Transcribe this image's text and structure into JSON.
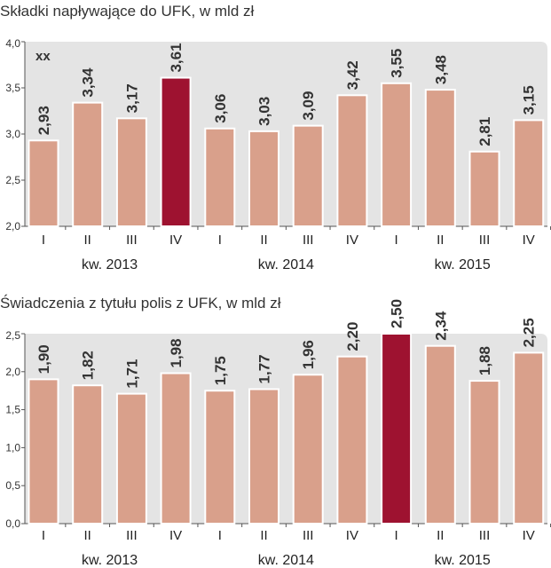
{
  "colors": {
    "bar": "#d9a08b",
    "bar_highlight": "#9e1230",
    "panel_bg": "#e4e4e4",
    "axis": "#555555"
  },
  "chart_data": [
    {
      "type": "bar",
      "title": "Składki napływające do UFK, w mld zł",
      "badge": "xx",
      "categories": [
        "I",
        "II",
        "III",
        "IV",
        "I",
        "II",
        "III",
        "IV",
        "I",
        "II",
        "III",
        "IV"
      ],
      "years": [
        "kw. 2013",
        "kw. 2014",
        "kw. 2015"
      ],
      "values": [
        2.93,
        3.34,
        3.17,
        3.61,
        3.06,
        3.03,
        3.09,
        3.42,
        3.55,
        3.48,
        2.81,
        3.15
      ],
      "value_labels": [
        "2,93",
        "3,34",
        "3,17",
        "3,61",
        "3,06",
        "3,03",
        "3,09",
        "3,42",
        "3,55",
        "3,48",
        "2,81",
        "3,15"
      ],
      "highlight_index": 3,
      "ylim": [
        2.0,
        4.0
      ],
      "yticks": [
        2.0,
        2.5,
        3.0,
        3.5,
        4.0
      ],
      "ytick_labels": [
        "2,0",
        "2,5",
        "3,0",
        "3,5",
        "4,0"
      ]
    },
    {
      "type": "bar",
      "title": "Świadczenia z tytułu polis z UFK, w mld zł",
      "categories": [
        "I",
        "II",
        "III",
        "IV",
        "I",
        "II",
        "III",
        "IV",
        "I",
        "II",
        "III",
        "IV"
      ],
      "years": [
        "kw. 2013",
        "kw. 2014",
        "kw. 2015"
      ],
      "values": [
        1.9,
        1.82,
        1.71,
        1.98,
        1.75,
        1.77,
        1.96,
        2.2,
        2.5,
        2.34,
        1.88,
        2.25
      ],
      "value_labels": [
        "1,90",
        "1,82",
        "1,71",
        "1,98",
        "1,75",
        "1,77",
        "1,96",
        "2,20",
        "2,50",
        "2,34",
        "1,88",
        "2,25"
      ],
      "highlight_index": 8,
      "ylim": [
        0.0,
        2.5
      ],
      "yticks": [
        0.0,
        0.5,
        1.0,
        1.5,
        2.0,
        2.5
      ],
      "ytick_labels": [
        "0,0",
        "0,5",
        "1,0",
        "1,5",
        "2,0",
        "2,5"
      ]
    }
  ]
}
